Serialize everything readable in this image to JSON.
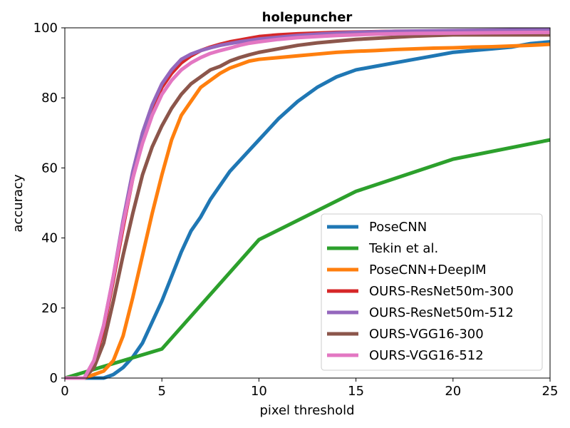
{
  "chart_data": {
    "type": "line",
    "title": "holepuncher",
    "xlabel": "pixel threshold",
    "ylabel": "accuracy",
    "xlim": [
      0,
      25
    ],
    "ylim": [
      0,
      100
    ],
    "xticks": [
      0,
      5,
      10,
      15,
      20,
      25
    ],
    "yticks": [
      0,
      20,
      40,
      60,
      80,
      100
    ],
    "grid": false,
    "legend_position": "lower-right",
    "series": [
      {
        "name": "PoseCNN",
        "color": "#1f77b4",
        "x": [
          0,
          1,
          2,
          2.5,
          3,
          3.5,
          4,
          4.5,
          5,
          5.5,
          6,
          6.5,
          7,
          7.5,
          8,
          8.5,
          9,
          9.5,
          10,
          11,
          12,
          13,
          14,
          15,
          16,
          17,
          18,
          19,
          20,
          21,
          22,
          23,
          24,
          25
        ],
        "y": [
          0,
          0,
          0,
          1,
          3,
          6,
          10,
          16,
          22,
          29,
          36,
          42,
          46,
          51,
          55,
          59,
          62,
          65,
          68,
          74,
          79,
          83,
          86,
          88,
          89,
          90,
          91,
          92,
          93,
          93.5,
          94,
          94.5,
          95.5,
          96
        ]
      },
      {
        "name": "Tekin et al.",
        "color": "#2ca02c",
        "x": [
          0,
          5,
          10,
          15,
          20,
          25
        ],
        "y": [
          0,
          8.3,
          39.5,
          53.3,
          62.5,
          68
        ]
      },
      {
        "name": "PoseCNN+DeepIM",
        "color": "#ff7f0e",
        "x": [
          0,
          1,
          1.5,
          2,
          2.5,
          3,
          3.5,
          4,
          4.5,
          5,
          5.5,
          6,
          6.5,
          7,
          7.5,
          8,
          8.5,
          9,
          9.5,
          10,
          11,
          12,
          13,
          14,
          15,
          16,
          17,
          18,
          19,
          20,
          21,
          22,
          23,
          24,
          25
        ],
        "y": [
          0,
          0,
          1,
          2,
          5,
          12,
          23,
          35,
          47,
          58,
          68,
          75,
          79,
          83,
          85,
          87,
          88.5,
          89.5,
          90.5,
          91,
          91.5,
          92,
          92.5,
          93,
          93.3,
          93.5,
          93.8,
          94,
          94.2,
          94.3,
          94.5,
          94.6,
          94.8,
          95,
          95.3
        ]
      },
      {
        "name": "OURS-ResNet50m-300",
        "color": "#d62728",
        "x": [
          0,
          1,
          1.5,
          2,
          2.5,
          3,
          3.5,
          4,
          4.5,
          5,
          5.5,
          6,
          6.5,
          7,
          7.5,
          8,
          8.5,
          9,
          9.5,
          10,
          11,
          12,
          13,
          14,
          15,
          17,
          20,
          25
        ],
        "y": [
          0,
          0,
          4,
          14,
          28,
          43,
          57,
          68,
          77,
          83,
          87,
          90,
          92,
          93.5,
          94.5,
          95.3,
          96,
          96.5,
          97,
          97.5,
          98,
          98.3,
          98.5,
          98.7,
          98.8,
          99,
          99,
          99
        ]
      },
      {
        "name": "OURS-ResNet50m-512",
        "color": "#9467bd",
        "x": [
          0,
          1,
          1.5,
          2,
          2.5,
          3,
          3.5,
          4,
          4.5,
          5,
          5.5,
          6,
          6.5,
          7,
          7.5,
          8,
          8.5,
          9,
          9.5,
          10,
          11,
          12,
          13,
          14,
          15,
          17,
          20,
          25
        ],
        "y": [
          0,
          0,
          5,
          15,
          29,
          45,
          59,
          70,
          78,
          84,
          88,
          91,
          92.5,
          93.5,
          94.3,
          95,
          95.5,
          96,
          96.4,
          96.8,
          97.3,
          97.8,
          98.2,
          98.5,
          98.7,
          99,
          99.2,
          99.5
        ]
      },
      {
        "name": "OURS-VGG16-300",
        "color": "#8c564b",
        "x": [
          0,
          1,
          1.5,
          2,
          2.5,
          3,
          3.5,
          4,
          4.5,
          5,
          5.5,
          6,
          6.5,
          7,
          7.5,
          8,
          8.5,
          9,
          9.5,
          10,
          11,
          12,
          13,
          14,
          15,
          16,
          17,
          18,
          19,
          20,
          21,
          22,
          23,
          24,
          25
        ],
        "y": [
          0,
          0,
          3,
          10,
          22,
          35,
          47,
          58,
          66,
          72,
          77,
          81,
          84,
          86,
          88,
          89,
          90.5,
          91.5,
          92.3,
          93,
          94,
          95,
          95.7,
          96.2,
          96.7,
          97,
          97.3,
          97.6,
          97.8,
          98,
          98,
          98,
          98,
          98,
          98
        ]
      },
      {
        "name": "OURS-VGG16-512",
        "color": "#e377c2",
        "x": [
          0,
          1,
          1.5,
          2,
          2.5,
          3,
          3.5,
          4,
          4.5,
          5,
          5.5,
          6,
          6.5,
          7,
          7.5,
          8,
          8.5,
          9,
          9.5,
          10,
          11,
          12,
          13,
          14,
          15,
          16,
          18,
          20,
          22,
          25
        ],
        "y": [
          0,
          0,
          5,
          15,
          29,
          44,
          57,
          67,
          75,
          81,
          85,
          88,
          90,
          91.5,
          92.7,
          93.5,
          94.2,
          95,
          95.6,
          96,
          96.7,
          97.2,
          97.5,
          97.8,
          98,
          98.2,
          98.4,
          98.5,
          98.6,
          98.7
        ]
      }
    ]
  }
}
